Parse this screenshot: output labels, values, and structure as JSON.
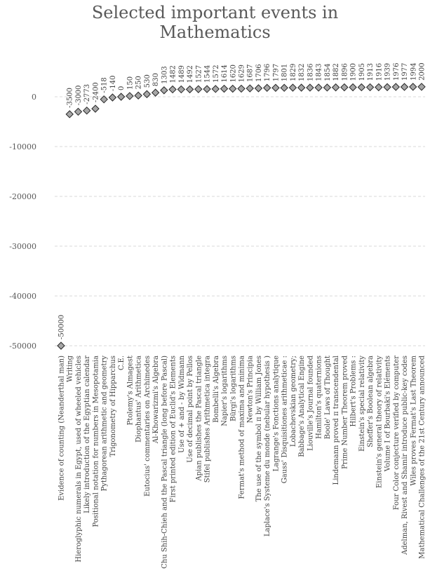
{
  "chart_data": {
    "type": "scatter",
    "title_line1": "Selected important events in",
    "title_line2": "Mathematics",
    "ylim": [
      -50000,
      0
    ],
    "yticks": [
      0,
      -10000,
      -20000,
      -30000,
      -40000,
      -50000
    ],
    "ytick_labels": [
      "0",
      "-10000",
      "-20000",
      "-30000",
      "-40000",
      "-50000"
    ],
    "grid": true,
    "marker": "diamond",
    "colors": {
      "marker_fill": "#a6a6a6",
      "marker_stroke": "#262626",
      "grid": "#d9d9d9",
      "text": "#595959"
    },
    "categories": [
      "Evidence of counting (Neanderthal man)",
      "Writing",
      "Hieroglyphic numerals in Egypt, used of wheeled vehicles",
      "Likely introduction of the Egyptian calendar",
      "Positional notation for numbers in Mesopotamia",
      "Pythagorean arithmetic and geometry",
      "Trigonometry of Hipparchus",
      "C.E.",
      "Ptolemy's Almagest",
      "Diophantus' Arithmetica",
      "Eutocius' commentaries on Archimedes",
      "Al-Khowarizmi's Algebra",
      "Chu Shih-Chieh and the Pascal triangle (long before Pascal)",
      "First printed edition of Euclid's Elements",
      "Use of + and - by Widmann",
      "Use of decimal point by Pellos",
      "Apian publishes the Pascal triangle",
      "Stifel publishes Arithmetica integra",
      "Bombelli's Algebra",
      "Napier's logarithms",
      "Bürgi's logarithms",
      "Fermat's method of maxima and minima",
      "Newton's Principia",
      "The use of the symbol π by William Jones",
      "Laplace's Systeme du monde (nebular hypothesis )",
      "Lagrange's Fonctions analytique",
      "Gauss' Disquisitiones arithmeticae :",
      "Lobachevskian geometry;",
      "Babbage's Analytical Engine",
      "Liouville's Journal founded",
      "Hamilton's quaternions",
      "Boole' Laws of Thought",
      "Lindemann proved π transcendental",
      "Prime Number Theorem proved",
      "Hilbert's Problems :",
      "Einstein's special relativity",
      "Sheffer's Boolean algebra",
      "Einstein's general theory of relativity",
      "Volume I of Bourbaki's Eléments",
      "Four Color conjecture verified by computer",
      "Adelman, Rivest and Shamir introduce public-key codes",
      "Wiles proves Fermat's Last Theorem",
      "Mathematical Challenges of the 21st Century announced"
    ],
    "values": [
      -50000,
      -3500,
      -3000,
      -2773,
      -2400,
      -518,
      -140,
      0,
      150,
      250,
      530,
      830,
      1303,
      1482,
      1489,
      1492,
      1527,
      1544,
      1572,
      1614,
      1620,
      1629,
      1687,
      1706,
      1796,
      1797,
      1801,
      1829,
      1832,
      1836,
      1843,
      1854,
      1882,
      1896,
      1900,
      1905,
      1913,
      1916,
      1939,
      1976,
      1977,
      1994,
      2000
    ],
    "value_labels": [
      "-50000",
      "-3500",
      "-3000",
      "-2773",
      "-2400",
      "-518",
      "-140",
      "0",
      "150",
      "250",
      "530",
      "830",
      "1303",
      "1482",
      "1489",
      "1492",
      "1527",
      "1544",
      "1572",
      "1614",
      "1620",
      "1629",
      "1687",
      "1706",
      "1796",
      "1797",
      "1801",
      "1829",
      "1832",
      "1836",
      "1843",
      "1854",
      "1882",
      "1896",
      "1900",
      "1905",
      "1913",
      "1916",
      "1939",
      "1976",
      "1977",
      "1994",
      "2000"
    ]
  }
}
